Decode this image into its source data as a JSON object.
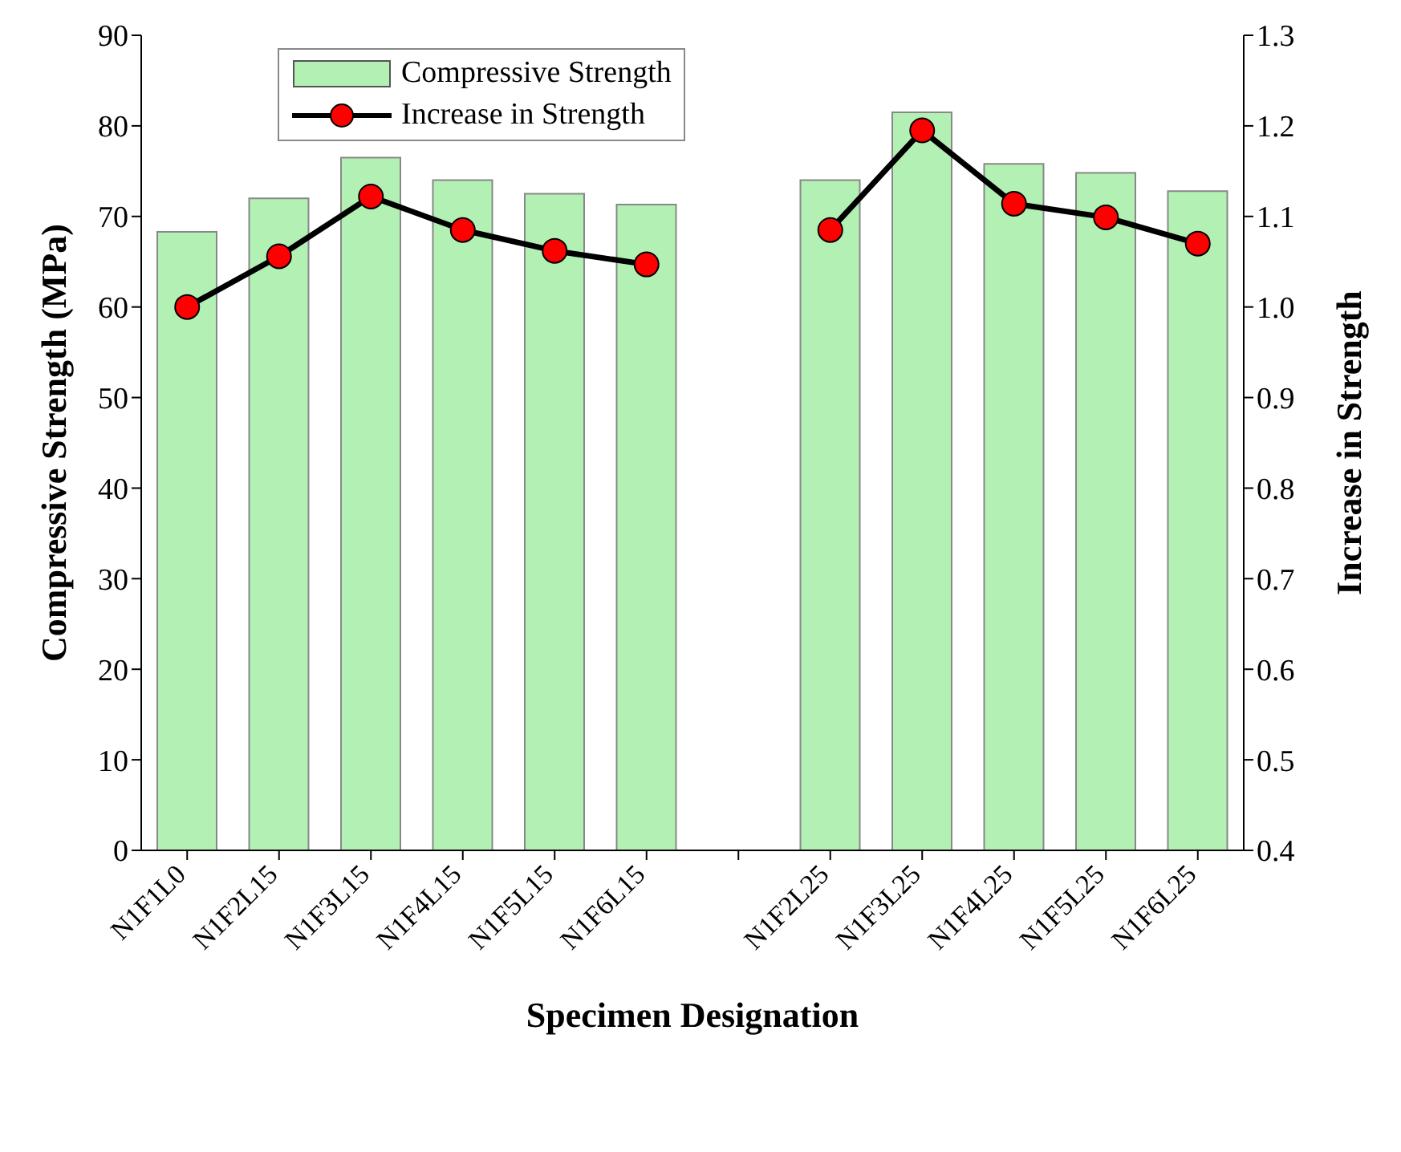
{
  "chart_data": {
    "type": "bar",
    "xlabel": "Specimen Designation",
    "ylabel": "Compressive Strength (MPa)",
    "y2label": "Increase in Strength",
    "categories": [
      "N1F1L0",
      "N1F2L15",
      "N1F3L15",
      "N1F4L15",
      "N1F5L15",
      "N1F6L15",
      null,
      "N1F2L25",
      "N1F3L25",
      "N1F4L25",
      "N1F5L25",
      "N1F6L25"
    ],
    "series": [
      {
        "name": "Compressive Strength",
        "color": "#b3f0b3",
        "values": [
          68.3,
          72,
          76.5,
          74,
          72.5,
          71.3,
          null,
          74,
          81.5,
          75.8,
          74.8,
          72.8
        ]
      },
      {
        "name": "Increase in Strength",
        "type": "line",
        "axis": "y2",
        "color": "#000000",
        "marker": "circle",
        "values": [
          1.0,
          1.056,
          1.122,
          1.085,
          1.062,
          1.047,
          null,
          1.085,
          1.195,
          1.114,
          1.099,
          1.07
        ]
      }
    ],
    "ylim": [
      0,
      90
    ],
    "yticks": [
      0,
      10,
      20,
      30,
      40,
      50,
      60,
      70,
      80,
      90
    ],
    "y2lim": [
      0.4,
      1.3
    ],
    "y2ticks": [
      {
        "value": 0.4,
        "label": "0.4"
      },
      {
        "value": 0.5,
        "label": "0.5"
      },
      {
        "value": 0.6,
        "label": "0.6"
      },
      {
        "value": 0.7,
        "label": "0.7"
      },
      {
        "value": 0.8,
        "label": "0.8"
      },
      {
        "value": 0.9,
        "label": "0.9"
      },
      {
        "value": 1.0,
        "label": "1.0"
      },
      {
        "value": 1.1,
        "label": "1.1"
      },
      {
        "value": 1.2,
        "label": "1.2"
      },
      {
        "value": 1.3,
        "label": "1.3"
      }
    ],
    "legend": "top left"
  }
}
